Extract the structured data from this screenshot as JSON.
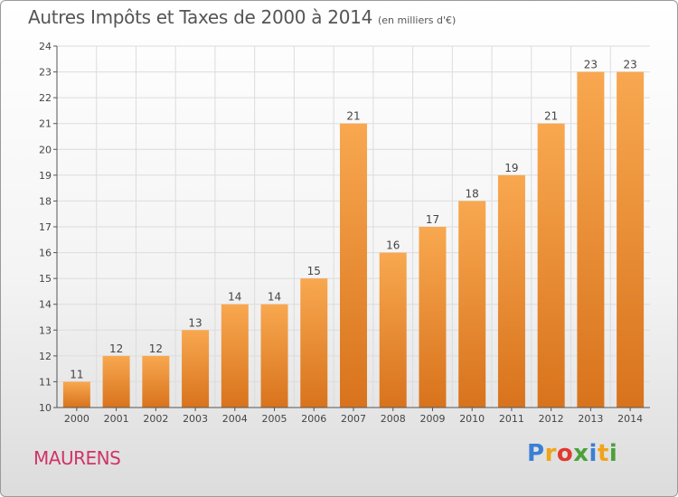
{
  "title": "Autres Impôts et Taxes de 2000 à 2014",
  "subtitle": "(en milliers d'€)",
  "town": "MAURENS",
  "logo": {
    "text": "Proxiti",
    "letters": [
      "P",
      "r",
      "o",
      "x",
      "i",
      "t",
      "i"
    ],
    "colors": [
      "#3a7fd5",
      "#f0a418",
      "#e2382f",
      "#4aa23a",
      "#3a7fd5",
      "#f0a418",
      "#4aa23a"
    ]
  },
  "colors": {
    "bar_light": "#f8a850",
    "bar_dark": "#d8731c",
    "axis": "#555555",
    "grid": "#dcdcdc"
  },
  "chart_data": {
    "type": "bar",
    "title": "Autres Impôts et Taxes de 2000 à 2014",
    "subtitle": "(en milliers d'€)",
    "categories": [
      "2000",
      "2001",
      "2002",
      "2003",
      "2004",
      "2005",
      "2006",
      "2007",
      "2008",
      "2009",
      "2010",
      "2011",
      "2012",
      "2013",
      "2014"
    ],
    "values": [
      11,
      12,
      12,
      13,
      14,
      14,
      15,
      21,
      16,
      17,
      18,
      19,
      21,
      23,
      23
    ],
    "y_ticks": [
      "10",
      "11",
      "12",
      "13",
      "14",
      "15",
      "16",
      "17",
      "18",
      "19",
      "20",
      "21",
      "22",
      "23",
      "24"
    ],
    "ylim": [
      10,
      24
    ],
    "xlabel": "",
    "ylabel": "",
    "grid": true
  }
}
